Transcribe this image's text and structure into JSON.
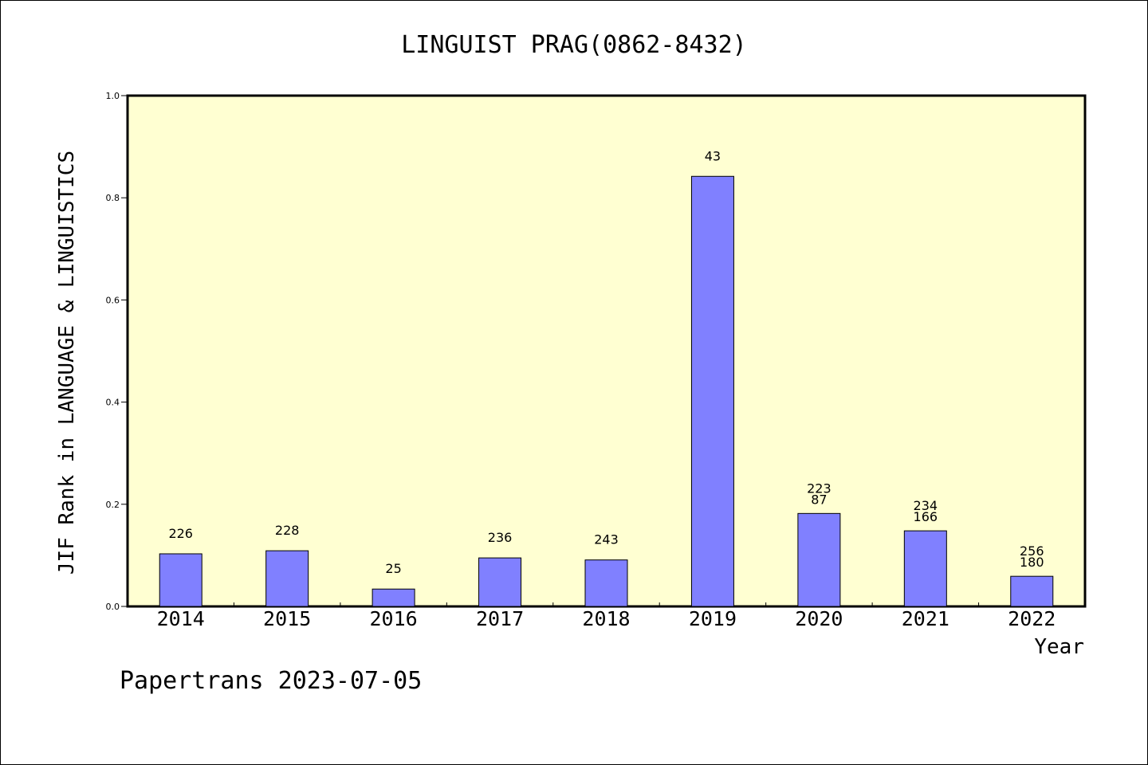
{
  "chart_data": {
    "type": "bar",
    "title": "LINGUIST PRAG(0862-8432)",
    "xlabel": "Year",
    "ylabel": "JIF Rank in LANGUAGE & LINGUISTICS",
    "footer": "Papertrans 2023-07-05",
    "ylim": [
      0,
      1.0
    ],
    "yticks": [
      "0.0",
      "0.2",
      "0.4",
      "0.6",
      "0.8",
      "1.0"
    ],
    "categories": [
      "2014",
      "2015",
      "2016",
      "2017",
      "2018",
      "2019",
      "2020",
      "2021",
      "2022"
    ],
    "values": [
      0.103,
      0.109,
      0.034,
      0.095,
      0.091,
      0.842,
      0.182,
      0.148,
      0.059
    ],
    "bar_labels": [
      [
        "226"
      ],
      [
        "228"
      ],
      [
        "25"
      ],
      [
        "236"
      ],
      [
        "243"
      ],
      [
        "43"
      ],
      [
        "223",
        "87"
      ],
      [
        "234",
        "166"
      ],
      [
        "256",
        "180"
      ]
    ],
    "plot_background": "#ffffd2",
    "bar_color": "#8080ff",
    "grid": false
  }
}
